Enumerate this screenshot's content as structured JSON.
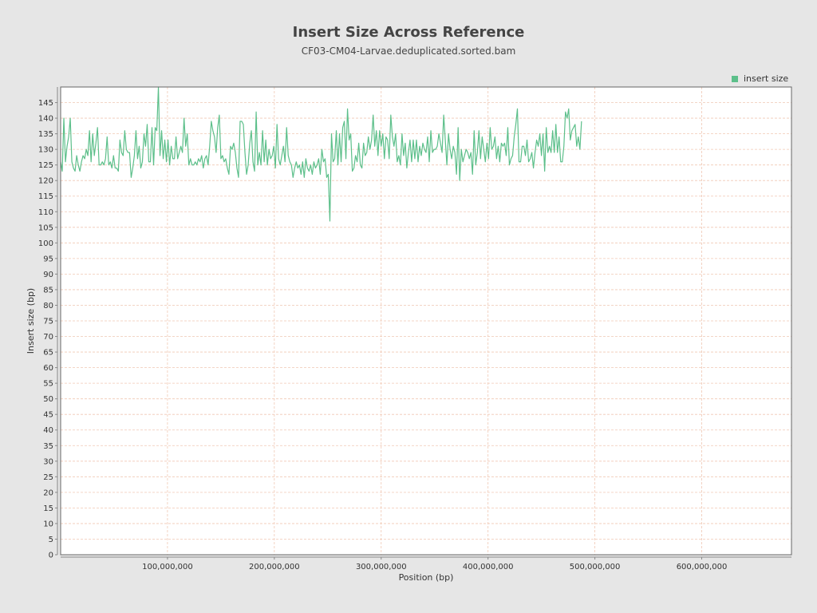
{
  "chart_data": {
    "type": "line",
    "title": "Insert Size Across Reference",
    "subtitle": "CF03-CM04-Larvae.deduplicated.sorted.bam",
    "xlabel": "Position (bp)",
    "ylabel": "Insert size (bp)",
    "xlim": [
      0,
      684000000
    ],
    "ylim": [
      0,
      150
    ],
    "y_ticks": [
      0,
      5,
      10,
      15,
      20,
      25,
      30,
      35,
      40,
      45,
      50,
      55,
      60,
      65,
      70,
      75,
      80,
      85,
      90,
      95,
      100,
      105,
      110,
      115,
      120,
      125,
      130,
      135,
      140,
      145
    ],
    "x_ticks": [
      100000000,
      200000000,
      300000000,
      400000000,
      500000000,
      600000000
    ],
    "x_tick_labels": [
      "100,000,000",
      "200,000,000",
      "300,000,000",
      "400,000,000",
      "500,000,000",
      "600,000,000"
    ],
    "grid": true,
    "legend_position": "top-right",
    "series": [
      {
        "name": "insert size",
        "color": "#5cbf8a",
        "x_start": 0,
        "x_step": 1500000,
        "values": [
          126,
          123,
          140,
          126,
          131,
          134,
          140,
          126,
          124,
          123,
          128,
          125,
          123,
          126,
          128,
          127,
          130,
          128,
          136,
          126,
          135,
          128,
          132,
          137,
          125,
          125,
          126,
          125,
          127,
          134,
          125,
          126,
          124,
          128,
          124,
          124,
          123,
          133,
          129,
          128,
          136,
          130,
          129,
          129,
          121,
          124,
          128,
          136,
          127,
          131,
          124,
          126,
          135,
          131,
          138,
          126,
          126,
          137,
          125,
          137,
          136,
          150,
          128,
          136,
          127,
          133,
          126,
          133,
          125,
          131,
          127,
          127,
          134,
          127,
          129,
          131,
          129,
          140,
          131,
          135,
          125,
          127,
          125,
          125,
          126,
          125,
          127,
          126,
          128,
          124,
          127,
          128,
          125,
          131,
          139,
          136,
          134,
          129,
          137,
          141,
          127,
          128,
          126,
          127,
          124,
          122,
          131,
          130,
          132,
          129,
          124,
          121,
          139,
          139,
          138,
          129,
          122,
          125,
          132,
          136,
          126,
          123,
          142,
          125,
          129,
          125,
          136,
          126,
          133,
          125,
          130,
          127,
          128,
          131,
          124,
          138,
          127,
          125,
          128,
          131,
          126,
          137,
          128,
          126,
          125,
          121,
          124,
          126,
          124,
          125,
          122,
          126,
          121,
          127,
          124,
          123,
          125,
          122,
          126,
          124,
          125,
          127,
          122,
          130,
          126,
          127,
          121,
          122,
          107,
          135,
          126,
          127,
          136,
          125,
          135,
          126,
          137,
          139,
          127,
          143,
          133,
          135,
          123,
          124,
          128,
          126,
          132,
          125,
          124,
          132,
          128,
          129,
          134,
          130,
          133,
          141,
          131,
          136,
          128,
          136,
          131,
          135,
          127,
          134,
          133,
          127,
          141,
          134,
          131,
          135,
          126,
          128,
          125,
          135,
          128,
          132,
          124,
          129,
          133,
          126,
          133,
          127,
          133,
          126,
          131,
          128,
          132,
          130,
          129,
          134,
          126,
          136,
          129,
          130,
          130,
          131,
          135,
          132,
          129,
          141,
          133,
          125,
          135,
          130,
          127,
          131,
          129,
          122,
          137,
          120,
          130,
          126,
          128,
          130,
          129,
          127,
          129,
          122,
          136,
          125,
          129,
          136,
          127,
          134,
          130,
          126,
          132,
          127,
          137,
          130,
          131,
          134,
          127,
          131,
          126,
          132,
          131,
          132,
          128,
          137,
          125,
          127,
          128,
          134,
          138,
          143,
          126,
          126,
          131,
          131,
          128,
          133,
          126,
          127,
          129,
          124,
          129,
          133,
          131,
          135,
          128,
          135,
          123,
          137,
          129,
          131,
          129,
          136,
          129,
          138,
          129,
          134,
          126,
          126,
          131,
          142,
          140,
          143,
          133,
          136,
          137,
          138,
          131,
          134,
          130,
          139
        ]
      }
    ]
  }
}
